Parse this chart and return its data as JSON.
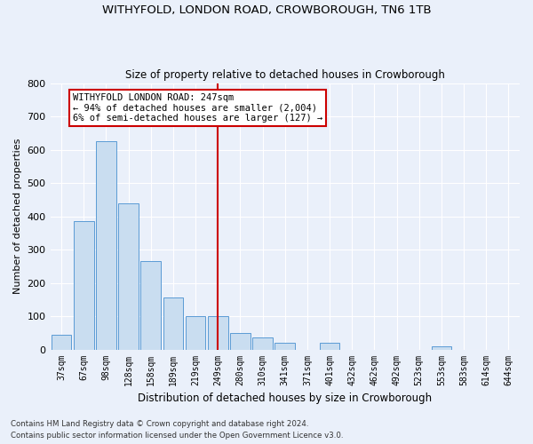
{
  "title": "WITHYFOLD, LONDON ROAD, CROWBOROUGH, TN6 1TB",
  "subtitle": "Size of property relative to detached houses in Crowborough",
  "xlabel": "Distribution of detached houses by size in Crowborough",
  "ylabel": "Number of detached properties",
  "footnote1": "Contains HM Land Registry data © Crown copyright and database right 2024.",
  "footnote2": "Contains public sector information licensed under the Open Government Licence v3.0.",
  "annotation_title": "WITHYFOLD LONDON ROAD: 247sqm",
  "annotation_line1": "← 94% of detached houses are smaller (2,004)",
  "annotation_line2": "6% of semi-detached houses are larger (127) →",
  "bar_categories": [
    "37sqm",
    "67sqm",
    "98sqm",
    "128sqm",
    "158sqm",
    "189sqm",
    "219sqm",
    "249sqm",
    "280sqm",
    "310sqm",
    "341sqm",
    "371sqm",
    "401sqm",
    "432sqm",
    "462sqm",
    "492sqm",
    "523sqm",
    "553sqm",
    "583sqm",
    "614sqm",
    "644sqm"
  ],
  "bar_values": [
    45,
    385,
    625,
    440,
    265,
    155,
    100,
    100,
    50,
    35,
    20,
    0,
    20,
    0,
    0,
    0,
    0,
    10,
    0,
    0,
    0
  ],
  "bar_color": "#c9ddf0",
  "bar_edge_color": "#5b9bd5",
  "vline_color": "#cc0000",
  "vline_index": 7.5,
  "ylim": [
    0,
    800
  ],
  "yticks": [
    0,
    100,
    200,
    300,
    400,
    500,
    600,
    700,
    800
  ],
  "bg_color": "#eaf0fa",
  "grid_color": "#ffffff",
  "annotation_box_facecolor": "#ffffff",
  "annotation_box_edgecolor": "#cc0000"
}
